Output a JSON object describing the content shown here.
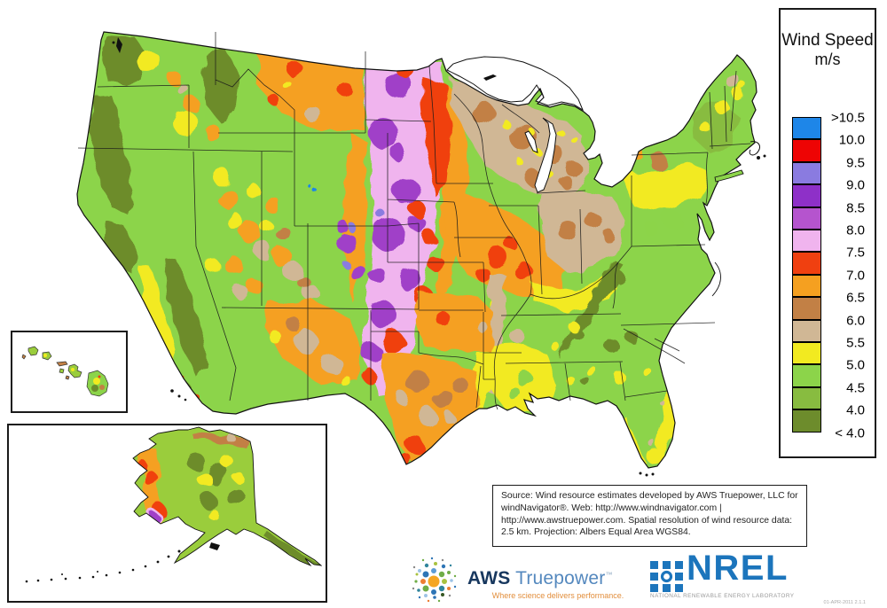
{
  "legend": {
    "title_line1": "Wind Speed",
    "title_line2": "m/s",
    "boundary_labels": [
      ">10.5",
      "10.0",
      "9.5",
      "9.0",
      "8.5",
      "8.0",
      "7.5",
      "7.0",
      "6.5",
      "6.0",
      "5.5",
      "5.0",
      "4.5",
      "4.0",
      "< 4.0"
    ],
    "swatch_colors": [
      "#1E86E8",
      "#EE0404",
      "#8A7BE0",
      "#8E30C8",
      "#B554CE",
      "#F0B4EE",
      "#F04010",
      "#F5A020",
      "#C28045",
      "#D0B795",
      "#F2EA20",
      "#8CD44A",
      "#88BC40",
      "#6D8C2C"
    ]
  },
  "source_box": {
    "text": "Source: Wind resource estimates developed by AWS Truepower, LLC for windNavigator®. Web: http://www.windnavigator.com | http://www.awstruepower.com. Spatial resolution of wind resource data: 2.5 km. Projection: Albers Equal Area WGS84."
  },
  "logos": {
    "aws": {
      "icon": "dot-cluster-icon",
      "name_bold": "AWS",
      "name_light": "Truepower",
      "trademark": "™",
      "tagline": "Where science delivers performance."
    },
    "nrel": {
      "icon": "nrel-mark-icon",
      "acronym": "NREL",
      "subtitle": "NATIONAL RENEWABLE ENERGY LABORATORY",
      "version": "01-APR-2011 2.1.1"
    }
  }
}
